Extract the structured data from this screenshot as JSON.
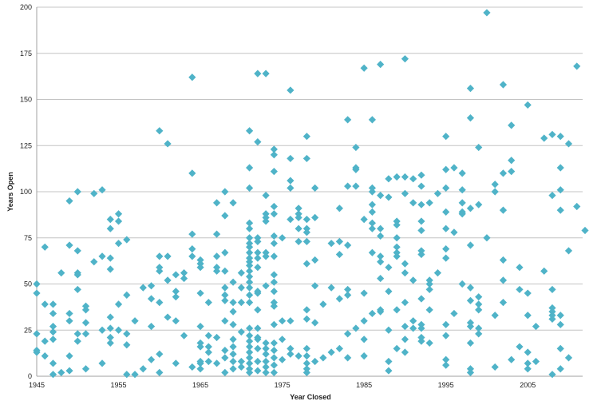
{
  "chart_data": {
    "type": "scatter",
    "title": "",
    "xlabel": "Year Closed",
    "ylabel": "Years Open",
    "xlim": [
      1945,
      2012
    ],
    "ylim": [
      0,
      200
    ],
    "x_ticks": [
      "1945",
      "1955",
      "1965",
      "1975",
      "1985",
      "1995",
      "2005"
    ],
    "y_ticks": [
      "0",
      "25",
      "50",
      "75",
      "100",
      "125",
      "150",
      "175",
      "200"
    ],
    "grid": "horizontal",
    "legend": "none",
    "marker": "diamond",
    "color": "#4fb3c8",
    "points": [
      [
        1945,
        50
      ],
      [
        1945,
        45
      ],
      [
        1945,
        23
      ],
      [
        1945,
        14
      ],
      [
        1945,
        13
      ],
      [
        1946,
        70
      ],
      [
        1946,
        39
      ],
      [
        1946,
        19
      ],
      [
        1946,
        11
      ],
      [
        1947,
        39
      ],
      [
        1947,
        34
      ],
      [
        1947,
        27
      ],
      [
        1947,
        24
      ],
      [
        1947,
        20
      ],
      [
        1947,
        7
      ],
      [
        1947,
        1
      ],
      [
        1948,
        56
      ],
      [
        1948,
        2
      ],
      [
        1949,
        95
      ],
      [
        1949,
        71
      ],
      [
        1949,
        34
      ],
      [
        1949,
        30
      ],
      [
        1949,
        11
      ],
      [
        1949,
        3
      ],
      [
        1950,
        100
      ],
      [
        1950,
        68
      ],
      [
        1950,
        56
      ],
      [
        1950,
        55
      ],
      [
        1950,
        47
      ],
      [
        1950,
        23
      ],
      [
        1950,
        19
      ],
      [
        1951,
        38
      ],
      [
        1951,
        36
      ],
      [
        1951,
        29
      ],
      [
        1951,
        23
      ],
      [
        1951,
        4
      ],
      [
        1952,
        99
      ],
      [
        1952,
        62
      ],
      [
        1953,
        101
      ],
      [
        1953,
        65
      ],
      [
        1953,
        25
      ],
      [
        1953,
        7
      ],
      [
        1954,
        85
      ],
      [
        1954,
        80
      ],
      [
        1954,
        64
      ],
      [
        1954,
        58
      ],
      [
        1954,
        32
      ],
      [
        1954,
        26
      ],
      [
        1954,
        21
      ],
      [
        1954,
        18
      ],
      [
        1955,
        88
      ],
      [
        1955,
        84
      ],
      [
        1955,
        72
      ],
      [
        1955,
        39
      ],
      [
        1955,
        25
      ],
      [
        1956,
        74
      ],
      [
        1956,
        44
      ],
      [
        1956,
        23
      ],
      [
        1956,
        17
      ],
      [
        1956,
        1
      ],
      [
        1957,
        30
      ],
      [
        1957,
        1
      ],
      [
        1958,
        48
      ],
      [
        1958,
        4
      ],
      [
        1959,
        49
      ],
      [
        1959,
        42
      ],
      [
        1959,
        27
      ],
      [
        1959,
        9
      ],
      [
        1960,
        133
      ],
      [
        1960,
        65
      ],
      [
        1960,
        59
      ],
      [
        1960,
        57
      ],
      [
        1960,
        40
      ],
      [
        1960,
        12
      ],
      [
        1960,
        2
      ],
      [
        1961,
        126
      ],
      [
        1961,
        65
      ],
      [
        1961,
        52
      ],
      [
        1961,
        32
      ],
      [
        1962,
        55
      ],
      [
        1962,
        46
      ],
      [
        1962,
        43
      ],
      [
        1962,
        30
      ],
      [
        1962,
        7
      ],
      [
        1963,
        56
      ],
      [
        1963,
        53
      ],
      [
        1963,
        22
      ],
      [
        1964,
        162
      ],
      [
        1964,
        110
      ],
      [
        1964,
        77
      ],
      [
        1964,
        69
      ],
      [
        1964,
        65
      ],
      [
        1964,
        5
      ],
      [
        1965,
        63
      ],
      [
        1965,
        61
      ],
      [
        1965,
        59
      ],
      [
        1965,
        45
      ],
      [
        1965,
        27
      ],
      [
        1965,
        18
      ],
      [
        1965,
        16
      ],
      [
        1965,
        8
      ],
      [
        1965,
        7
      ],
      [
        1965,
        4
      ],
      [
        1966,
        40
      ],
      [
        1966,
        22
      ],
      [
        1966,
        16
      ],
      [
        1966,
        13
      ],
      [
        1966,
        8
      ],
      [
        1967,
        94
      ],
      [
        1967,
        77
      ],
      [
        1967,
        65
      ],
      [
        1967,
        59
      ],
      [
        1967,
        57
      ],
      [
        1967,
        21
      ],
      [
        1967,
        7
      ],
      [
        1968,
        100
      ],
      [
        1968,
        87
      ],
      [
        1968,
        67
      ],
      [
        1968,
        57
      ],
      [
        1968,
        48
      ],
      [
        1968,
        44
      ],
      [
        1968,
        41
      ],
      [
        1968,
        30
      ],
      [
        1968,
        14
      ],
      [
        1968,
        10
      ],
      [
        1968,
        2
      ],
      [
        1969,
        94
      ],
      [
        1969,
        51
      ],
      [
        1969,
        40
      ],
      [
        1969,
        35
      ],
      [
        1969,
        28
      ],
      [
        1969,
        20
      ],
      [
        1969,
        16
      ],
      [
        1969,
        12
      ],
      [
        1969,
        8
      ],
      [
        1969,
        4
      ],
      [
        1970,
        56
      ],
      [
        1970,
        48
      ],
      [
        1970,
        40
      ],
      [
        1970,
        24
      ],
      [
        1970,
        8
      ],
      [
        1970,
        5
      ],
      [
        1971,
        133
      ],
      [
        1971,
        113
      ],
      [
        1971,
        102
      ],
      [
        1971,
        83
      ],
      [
        1971,
        80
      ],
      [
        1971,
        75
      ],
      [
        1971,
        72
      ],
      [
        1971,
        70
      ],
      [
        1971,
        67
      ],
      [
        1971,
        64
      ],
      [
        1971,
        62
      ],
      [
        1971,
        60
      ],
      [
        1971,
        57
      ],
      [
        1971,
        54
      ],
      [
        1971,
        51
      ],
      [
        1971,
        48
      ],
      [
        1971,
        44
      ],
      [
        1971,
        40
      ],
      [
        1971,
        26
      ],
      [
        1971,
        22
      ],
      [
        1971,
        19
      ],
      [
        1971,
        16
      ],
      [
        1971,
        13
      ],
      [
        1971,
        10
      ],
      [
        1971,
        7
      ],
      [
        1971,
        4
      ],
      [
        1971,
        2
      ],
      [
        1972,
        164
      ],
      [
        1972,
        127
      ],
      [
        1972,
        75
      ],
      [
        1972,
        73
      ],
      [
        1972,
        67
      ],
      [
        1972,
        64
      ],
      [
        1972,
        59
      ],
      [
        1972,
        46
      ],
      [
        1972,
        45
      ],
      [
        1972,
        36
      ],
      [
        1972,
        26
      ],
      [
        1972,
        21
      ],
      [
        1972,
        20
      ],
      [
        1972,
        15
      ],
      [
        1972,
        8
      ],
      [
        1972,
        3
      ],
      [
        1973,
        164
      ],
      [
        1973,
        98
      ],
      [
        1973,
        88
      ],
      [
        1973,
        86
      ],
      [
        1973,
        84
      ],
      [
        1973,
        67
      ],
      [
        1973,
        65
      ],
      [
        1973,
        49
      ],
      [
        1973,
        18
      ],
      [
        1973,
        15
      ],
      [
        1973,
        12
      ],
      [
        1973,
        8
      ],
      [
        1973,
        5
      ],
      [
        1973,
        2
      ],
      [
        1974,
        123
      ],
      [
        1974,
        120
      ],
      [
        1974,
        111
      ],
      [
        1974,
        92
      ],
      [
        1974,
        88
      ],
      [
        1974,
        76
      ],
      [
        1974,
        72
      ],
      [
        1974,
        65
      ],
      [
        1974,
        55
      ],
      [
        1974,
        51
      ],
      [
        1974,
        46
      ],
      [
        1974,
        40
      ],
      [
        1974,
        38
      ],
      [
        1974,
        28
      ],
      [
        1974,
        18
      ],
      [
        1974,
        14
      ],
      [
        1974,
        10
      ],
      [
        1974,
        6
      ],
      [
        1974,
        2
      ],
      [
        1975,
        75
      ],
      [
        1975,
        30
      ],
      [
        1975,
        20
      ],
      [
        1975,
        9
      ],
      [
        1976,
        155
      ],
      [
        1976,
        118
      ],
      [
        1976,
        106
      ],
      [
        1976,
        102
      ],
      [
        1976,
        85
      ],
      [
        1976,
        30
      ],
      [
        1976,
        15
      ],
      [
        1976,
        12
      ],
      [
        1977,
        91
      ],
      [
        1977,
        88
      ],
      [
        1977,
        86
      ],
      [
        1977,
        80
      ],
      [
        1977,
        73
      ],
      [
        1977,
        11
      ],
      [
        1978,
        130
      ],
      [
        1978,
        118
      ],
      [
        1978,
        85
      ],
      [
        1978,
        80
      ],
      [
        1978,
        78
      ],
      [
        1978,
        73
      ],
      [
        1978,
        61
      ],
      [
        1978,
        36
      ],
      [
        1978,
        31
      ],
      [
        1978,
        15
      ],
      [
        1978,
        11
      ],
      [
        1978,
        7
      ],
      [
        1978,
        4
      ],
      [
        1978,
        2
      ],
      [
        1979,
        102
      ],
      [
        1979,
        86
      ],
      [
        1979,
        63
      ],
      [
        1979,
        49
      ],
      [
        1979,
        29
      ],
      [
        1979,
        8
      ],
      [
        1980,
        39
      ],
      [
        1980,
        10
      ],
      [
        1981,
        72
      ],
      [
        1981,
        48
      ],
      [
        1981,
        13
      ],
      [
        1982,
        91
      ],
      [
        1982,
        73
      ],
      [
        1982,
        66
      ],
      [
        1982,
        42
      ],
      [
        1982,
        15
      ],
      [
        1983,
        139
      ],
      [
        1983,
        103
      ],
      [
        1983,
        71
      ],
      [
        1983,
        47
      ],
      [
        1983,
        44
      ],
      [
        1983,
        23
      ],
      [
        1983,
        10
      ],
      [
        1984,
        124
      ],
      [
        1984,
        113
      ],
      [
        1984,
        112
      ],
      [
        1984,
        103
      ],
      [
        1984,
        26
      ],
      [
        1985,
        167
      ],
      [
        1985,
        85
      ],
      [
        1985,
        45
      ],
      [
        1985,
        30
      ],
      [
        1985,
        20
      ],
      [
        1985,
        11
      ],
      [
        1986,
        139
      ],
      [
        1986,
        102
      ],
      [
        1986,
        100
      ],
      [
        1986,
        93
      ],
      [
        1986,
        89
      ],
      [
        1986,
        83
      ],
      [
        1986,
        80
      ],
      [
        1986,
        67
      ],
      [
        1986,
        34
      ],
      [
        1987,
        169
      ],
      [
        1987,
        98
      ],
      [
        1987,
        80
      ],
      [
        1987,
        76
      ],
      [
        1987,
        65
      ],
      [
        1987,
        62
      ],
      [
        1987,
        53
      ],
      [
        1987,
        36
      ],
      [
        1987,
        35
      ],
      [
        1988,
        107
      ],
      [
        1988,
        97
      ],
      [
        1988,
        59
      ],
      [
        1988,
        46
      ],
      [
        1988,
        25
      ],
      [
        1988,
        8
      ],
      [
        1988,
        3
      ],
      [
        1989,
        108
      ],
      [
        1989,
        84
      ],
      [
        1989,
        82
      ],
      [
        1989,
        75
      ],
      [
        1989,
        70
      ],
      [
        1989,
        67
      ],
      [
        1989,
        65
      ],
      [
        1989,
        36
      ],
      [
        1989,
        15
      ],
      [
        1990,
        172
      ],
      [
        1990,
        108
      ],
      [
        1990,
        99
      ],
      [
        1990,
        61
      ],
      [
        1990,
        56
      ],
      [
        1990,
        40
      ],
      [
        1990,
        27
      ],
      [
        1990,
        20
      ],
      [
        1990,
        13
      ],
      [
        1991,
        107
      ],
      [
        1991,
        94
      ],
      [
        1991,
        52
      ],
      [
        1991,
        30
      ],
      [
        1991,
        26
      ],
      [
        1992,
        109
      ],
      [
        1992,
        103
      ],
      [
        1992,
        93
      ],
      [
        1992,
        84
      ],
      [
        1992,
        79
      ],
      [
        1992,
        68
      ],
      [
        1992,
        66
      ],
      [
        1992,
        42
      ],
      [
        1992,
        28
      ],
      [
        1992,
        26
      ],
      [
        1992,
        21
      ],
      [
        1992,
        19
      ],
      [
        1993,
        94
      ],
      [
        1993,
        52
      ],
      [
        1993,
        50
      ],
      [
        1993,
        47
      ],
      [
        1993,
        36
      ],
      [
        1993,
        18
      ],
      [
        1994,
        99
      ],
      [
        1994,
        56
      ],
      [
        1995,
        130
      ],
      [
        1995,
        112
      ],
      [
        1995,
        102
      ],
      [
        1995,
        89
      ],
      [
        1995,
        80
      ],
      [
        1995,
        69
      ],
      [
        1995,
        64
      ],
      [
        1995,
        28
      ],
      [
        1995,
        22
      ],
      [
        1995,
        9
      ],
      [
        1995,
        6
      ],
      [
        1996,
        113
      ],
      [
        1996,
        78
      ],
      [
        1996,
        34
      ],
      [
        1997,
        110
      ],
      [
        1997,
        101
      ],
      [
        1997,
        94
      ],
      [
        1997,
        89
      ],
      [
        1997,
        88
      ],
      [
        1997,
        50
      ],
      [
        1998,
        156
      ],
      [
        1998,
        140
      ],
      [
        1998,
        91
      ],
      [
        1998,
        71
      ],
      [
        1998,
        48
      ],
      [
        1998,
        41
      ],
      [
        1998,
        29
      ],
      [
        1998,
        27
      ],
      [
        1998,
        18
      ],
      [
        1998,
        4
      ],
      [
        1998,
        2
      ],
      [
        1999,
        124
      ],
      [
        1999,
        93
      ],
      [
        1999,
        43
      ],
      [
        1999,
        39
      ],
      [
        1999,
        36
      ],
      [
        1999,
        26
      ],
      [
        1999,
        23
      ],
      [
        2000,
        197
      ],
      [
        2000,
        75
      ],
      [
        2001,
        104
      ],
      [
        2001,
        100
      ],
      [
        2001,
        33
      ],
      [
        2001,
        5
      ],
      [
        2002,
        158
      ],
      [
        2002,
        110
      ],
      [
        2002,
        90
      ],
      [
        2002,
        63
      ],
      [
        2002,
        52
      ],
      [
        2002,
        40
      ],
      [
        2003,
        136
      ],
      [
        2003,
        117
      ],
      [
        2003,
        111
      ],
      [
        2003,
        9
      ],
      [
        2004,
        59
      ],
      [
        2004,
        47
      ],
      [
        2004,
        16
      ],
      [
        2005,
        147
      ],
      [
        2005,
        45
      ],
      [
        2005,
        33
      ],
      [
        2005,
        13
      ],
      [
        2005,
        7
      ],
      [
        2005,
        4
      ],
      [
        2006,
        27
      ],
      [
        2006,
        8
      ],
      [
        2007,
        129
      ],
      [
        2007,
        57
      ],
      [
        2008,
        131
      ],
      [
        2008,
        98
      ],
      [
        2008,
        47
      ],
      [
        2008,
        37
      ],
      [
        2008,
        35
      ],
      [
        2008,
        33
      ],
      [
        2008,
        31
      ],
      [
        2008,
        1
      ],
      [
        2009,
        130
      ],
      [
        2009,
        113
      ],
      [
        2009,
        101
      ],
      [
        2009,
        90
      ],
      [
        2009,
        33
      ],
      [
        2009,
        28
      ],
      [
        2009,
        15
      ],
      [
        2009,
        4
      ],
      [
        2010,
        126
      ],
      [
        2010,
        68
      ],
      [
        2010,
        10
      ],
      [
        2011,
        168
      ],
      [
        2011,
        92
      ],
      [
        2012,
        79
      ]
    ]
  }
}
